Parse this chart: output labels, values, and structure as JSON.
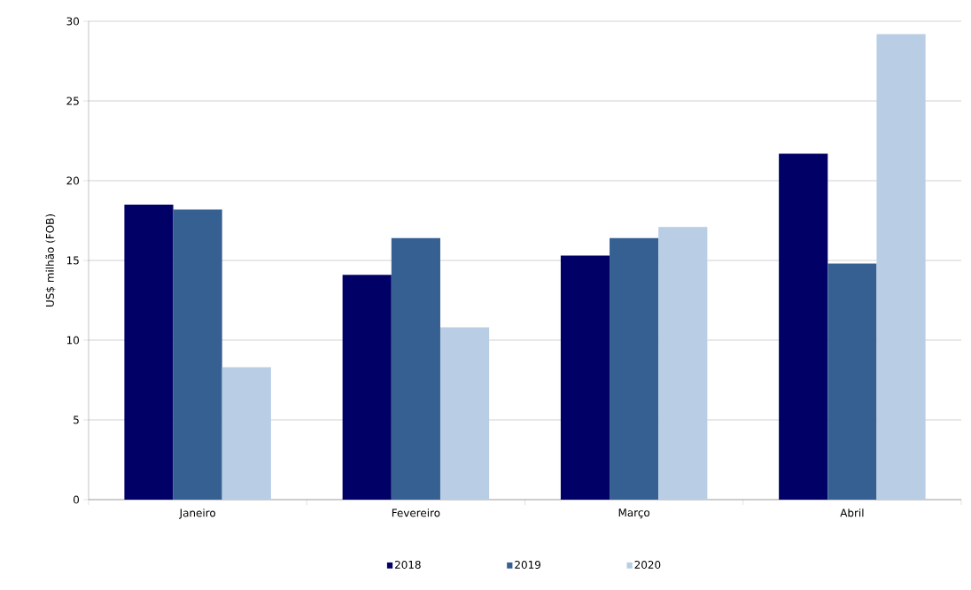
{
  "chart_data": {
    "type": "bar",
    "ylabel": "US$ milhão (FOB)",
    "categories": [
      "Janeiro",
      "Fevereiro",
      "Março",
      "Abril"
    ],
    "series": [
      {
        "name": "2018",
        "color": "#000066",
        "values": [
          18.5,
          14.1,
          15.3,
          21.7
        ]
      },
      {
        "name": "2019",
        "color": "#366092",
        "values": [
          18.2,
          16.4,
          16.4,
          14.8
        ]
      },
      {
        "name": "2020",
        "color": "#b9cde5",
        "values": [
          8.3,
          10.8,
          17.1,
          29.2
        ]
      }
    ],
    "ylim": [
      0,
      30
    ],
    "yticks": [
      0,
      5,
      10,
      15,
      20,
      25,
      30
    ],
    "grid": "y",
    "legend": "bottom"
  }
}
